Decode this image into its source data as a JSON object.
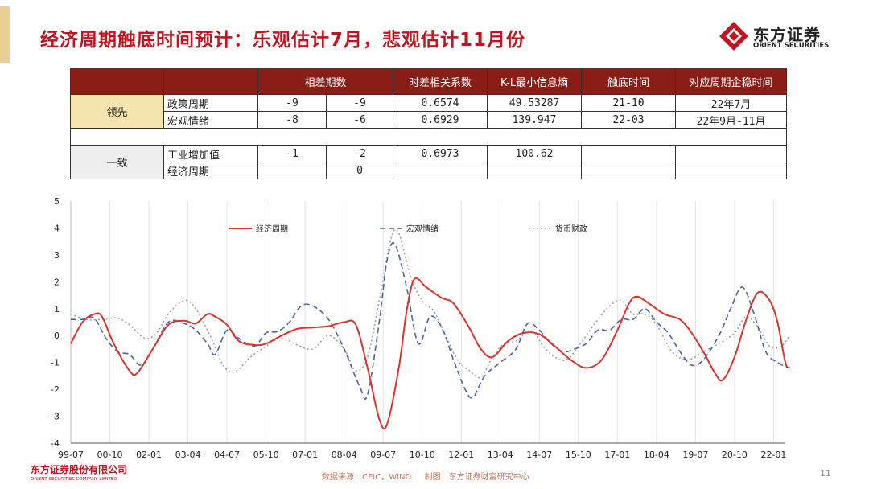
{
  "title": "经济周期触底时间预计：乐观估计7月，悲观估计11月份",
  "logo": {
    "cn": "东方证券",
    "en": "ORIENT SECURITIES"
  },
  "table": {
    "headers": [
      "",
      "",
      "相差期数",
      "时差相关系数",
      "K-L最小信息熵",
      "触底时间",
      "对应周期企稳时间"
    ],
    "group1": {
      "label": "领先",
      "rows": [
        {
          "name": "政策周期",
          "a": "-9",
          "b": "-9",
          "corr": "0.6574",
          "kl": "49.53287",
          "bottom": "21-10",
          "stable": "22年7月"
        },
        {
          "name": "宏观情绪",
          "a": "-8",
          "b": "-6",
          "corr": "0.6929",
          "kl": "139.947",
          "bottom": "22-03",
          "stable": "22年9月-11月"
        }
      ]
    },
    "group2": {
      "label": "一致",
      "rows": [
        {
          "name": "工业增加值",
          "a": "-1",
          "b": "-2",
          "corr": "0.6973",
          "kl": "100.62",
          "bottom": "",
          "stable": ""
        },
        {
          "name": "经济周期",
          "a": "",
          "b": "0",
          "corr": "",
          "kl": "",
          "bottom": "",
          "stable": ""
        }
      ]
    }
  },
  "chart_data": {
    "type": "line",
    "ylim": [
      -4,
      5
    ],
    "yticks": [
      -4,
      -3,
      -2,
      -1,
      0,
      1,
      2,
      3,
      4,
      5
    ],
    "x_tick_labels": [
      "99-07",
      "00-10",
      "02-01",
      "03-04",
      "04-07",
      "05-10",
      "07-01",
      "08-04",
      "09-07",
      "10-10",
      "12-01",
      "13-04",
      "14-07",
      "15-10",
      "17-01",
      "18-04",
      "19-07",
      "20-10",
      "22-01"
    ],
    "x_range": [
      0,
      18.3
    ],
    "legend": "top",
    "series": [
      {
        "name": "经济周期",
        "color": "#d9342b",
        "style": "solid",
        "points": [
          [
            0,
            -0.3
          ],
          [
            0.3,
            0.5
          ],
          [
            0.6,
            0.8
          ],
          [
            0.8,
            0.7
          ],
          [
            1.1,
            -0.3
          ],
          [
            1.5,
            -1.3
          ],
          [
            1.7,
            -1.4
          ],
          [
            2.1,
            -0.5
          ],
          [
            2.5,
            0.4
          ],
          [
            2.9,
            0.55
          ],
          [
            3.2,
            0.45
          ],
          [
            3.5,
            0.8
          ],
          [
            3.7,
            0.7
          ],
          [
            4.0,
            0.4
          ],
          [
            4.3,
            -0.2
          ],
          [
            4.7,
            -0.35
          ],
          [
            5.0,
            -0.3
          ],
          [
            5.4,
            0
          ],
          [
            5.8,
            0.25
          ],
          [
            6.2,
            0.3
          ],
          [
            6.6,
            0.35
          ],
          [
            7.0,
            0.5
          ],
          [
            7.3,
            0.4
          ],
          [
            7.6,
            -1.2
          ],
          [
            7.9,
            -3.1
          ],
          [
            8.1,
            -3.3
          ],
          [
            8.4,
            -1.2
          ],
          [
            8.6,
            0.9
          ],
          [
            8.8,
            2.1
          ],
          [
            9.1,
            1.8
          ],
          [
            9.5,
            1.4
          ],
          [
            9.8,
            1.2
          ],
          [
            10.2,
            0.3
          ],
          [
            10.5,
            -0.5
          ],
          [
            10.8,
            -0.8
          ],
          [
            11.2,
            -0.2
          ],
          [
            11.6,
            0.1
          ],
          [
            12.0,
            0.05
          ],
          [
            12.4,
            -0.4
          ],
          [
            12.8,
            -0.9
          ],
          [
            13.2,
            -1.2
          ],
          [
            13.6,
            -0.9
          ],
          [
            14.0,
            0.2
          ],
          [
            14.3,
            1.2
          ],
          [
            14.5,
            1.45
          ],
          [
            14.8,
            1.2
          ],
          [
            15.2,
            0.8
          ],
          [
            15.6,
            0.6
          ],
          [
            15.9,
            0.1
          ],
          [
            16.2,
            -0.6
          ],
          [
            16.5,
            -1.4
          ],
          [
            16.7,
            -1.65
          ],
          [
            17.0,
            -0.8
          ],
          [
            17.3,
            0.6
          ],
          [
            17.6,
            1.6
          ],
          [
            17.9,
            1.3
          ],
          [
            18.1,
            0.5
          ],
          [
            18.3,
            -1.0
          ],
          [
            18.4,
            -1.2
          ]
        ]
      },
      {
        "name": "宏观情绪",
        "color": "#4a63a8",
        "style": "dashed",
        "points": [
          [
            0,
            0.6
          ],
          [
            0.3,
            0.6
          ],
          [
            0.6,
            0.65
          ],
          [
            0.9,
            -0.1
          ],
          [
            1.2,
            -0.6
          ],
          [
            1.5,
            -0.7
          ],
          [
            1.8,
            -1.1
          ],
          [
            2.1,
            -0.5
          ],
          [
            2.5,
            0.5
          ],
          [
            2.9,
            0.45
          ],
          [
            3.2,
            0.2
          ],
          [
            3.5,
            -0.3
          ],
          [
            3.7,
            -0.7
          ],
          [
            4.0,
            0.2
          ],
          [
            4.3,
            -0.1
          ],
          [
            4.7,
            -0.4
          ],
          [
            5.0,
            0.1
          ],
          [
            5.3,
            0.15
          ],
          [
            5.6,
            0.5
          ],
          [
            5.9,
            1.1
          ],
          [
            6.2,
            1.1
          ],
          [
            6.6,
            0.6
          ],
          [
            7.0,
            -0.5
          ],
          [
            7.4,
            -1.9
          ],
          [
            7.6,
            -2.2
          ],
          [
            7.9,
            0.5
          ],
          [
            8.1,
            2.8
          ],
          [
            8.3,
            3.4
          ],
          [
            8.6,
            1.8
          ],
          [
            8.9,
            -0.3
          ],
          [
            9.2,
            0.7
          ],
          [
            9.5,
            0.3
          ],
          [
            9.8,
            -0.9
          ],
          [
            10.1,
            -2.0
          ],
          [
            10.3,
            -2.3
          ],
          [
            10.6,
            -1.5
          ],
          [
            11.0,
            -1.0
          ],
          [
            11.4,
            -0.5
          ],
          [
            11.7,
            0.45
          ],
          [
            12.0,
            0.2
          ],
          [
            12.3,
            -0.3
          ],
          [
            12.6,
            -0.6
          ],
          [
            12.9,
            -0.5
          ],
          [
            13.2,
            -0.3
          ],
          [
            13.5,
            0.2
          ],
          [
            13.8,
            0.2
          ],
          [
            14.1,
            0.6
          ],
          [
            14.4,
            0.6
          ],
          [
            14.7,
            1.0
          ],
          [
            15.0,
            0.5
          ],
          [
            15.3,
            0.1
          ],
          [
            15.6,
            -0.6
          ],
          [
            15.9,
            -1.1
          ],
          [
            16.2,
            -0.9
          ],
          [
            16.6,
            0
          ],
          [
            16.9,
            1.0
          ],
          [
            17.2,
            1.8
          ],
          [
            17.5,
            0.8
          ],
          [
            17.8,
            -0.6
          ],
          [
            18.1,
            -1.0
          ],
          [
            18.4,
            -1.2
          ]
        ]
      },
      {
        "name": "货币财政",
        "color": "#9aa0a6",
        "style": "dotted",
        "points": [
          [
            0,
            0.8
          ],
          [
            0.4,
            0.6
          ],
          [
            0.8,
            0.6
          ],
          [
            1.2,
            0.65
          ],
          [
            1.5,
            0.4
          ],
          [
            1.9,
            -0.1
          ],
          [
            2.2,
            0.1
          ],
          [
            2.5,
            0.8
          ],
          [
            2.9,
            1.3
          ],
          [
            3.2,
            1.0
          ],
          [
            3.6,
            -0.1
          ],
          [
            3.9,
            -1.1
          ],
          [
            4.2,
            -1.35
          ],
          [
            4.6,
            -0.8
          ],
          [
            5.0,
            -0.4
          ],
          [
            5.4,
            -0.1
          ],
          [
            5.8,
            -0.35
          ],
          [
            6.2,
            -0.5
          ],
          [
            6.6,
            0
          ],
          [
            7.0,
            -0.5
          ],
          [
            7.3,
            -1.3
          ],
          [
            7.6,
            -0.8
          ],
          [
            7.9,
            1.3
          ],
          [
            8.2,
            3.6
          ],
          [
            8.4,
            3.8
          ],
          [
            8.7,
            2.2
          ],
          [
            9.0,
            1.3
          ],
          [
            9.3,
            0.9
          ],
          [
            9.6,
            0
          ],
          [
            9.9,
            -0.9
          ],
          [
            10.2,
            -1.3
          ],
          [
            10.5,
            -1.55
          ],
          [
            10.8,
            -0.8
          ],
          [
            11.1,
            -0.3
          ],
          [
            11.4,
            -0.2
          ],
          [
            11.8,
            0.2
          ],
          [
            12.1,
            -0.4
          ],
          [
            12.4,
            -0.8
          ],
          [
            12.7,
            -0.9
          ],
          [
            13.0,
            -0.4
          ],
          [
            13.4,
            0.4
          ],
          [
            13.8,
            1.1
          ],
          [
            14.1,
            1.3
          ],
          [
            14.4,
            0.8
          ],
          [
            14.7,
            0.8
          ],
          [
            15.0,
            0.4
          ],
          [
            15.4,
            -0.6
          ],
          [
            15.8,
            -0.9
          ],
          [
            16.2,
            -0.6
          ],
          [
            16.6,
            -0.3
          ],
          [
            17.0,
            0.1
          ],
          [
            17.3,
            0.7
          ],
          [
            17.6,
            0.3
          ],
          [
            17.9,
            -0.4
          ],
          [
            18.2,
            -0.4
          ],
          [
            18.4,
            0.0
          ]
        ]
      }
    ]
  },
  "footer": {
    "company_cn": "东方证券股份有限公司",
    "company_en": "ORIENT SECURITIES COMPANY LIMITED",
    "source": "数据来源：CEIC，WIND  ｜ 制图：东方证券财富研究中心",
    "page": "11"
  }
}
